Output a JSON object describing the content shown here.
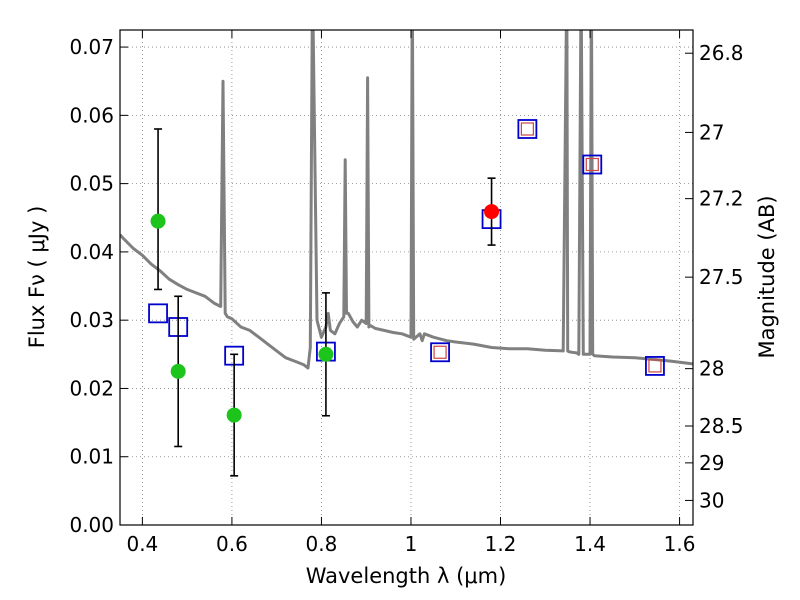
{
  "chart_data": {
    "type": "scatter",
    "xlabel": "Wavelength  λ (μm)",
    "ylabel": "Flux  Fν ( μJy )",
    "y2label": "Magnitude (AB)",
    "xlim": [
      0.35,
      1.63
    ],
    "ylim": [
      0.0,
      0.0725
    ],
    "grid": true,
    "x_ticks": [
      0.4,
      0.6,
      0.8,
      1.0,
      1.2,
      1.4,
      1.6
    ],
    "x_tick_labels": [
      "0.4",
      "0.6",
      "0.8",
      "1",
      "1.2",
      "1.4",
      "1.6"
    ],
    "y_ticks": [
      0.0,
      0.01,
      0.02,
      0.03,
      0.04,
      0.05,
      0.06,
      0.07
    ],
    "y_tick_labels": [
      "0.00",
      "0.01",
      "0.02",
      "0.03",
      "0.04",
      "0.05",
      "0.06",
      "0.07"
    ],
    "mag_ticks": [
      {
        "flux": 0.0691,
        "label": "26.8"
      },
      {
        "flux": 0.0575,
        "label": "27"
      },
      {
        "flux": 0.0478,
        "label": "27.2"
      },
      {
        "flux": 0.0363,
        "label": "27.5"
      },
      {
        "flux": 0.0229,
        "label": "28"
      },
      {
        "flux": 0.0145,
        "label": "28.5"
      },
      {
        "flux": 0.0091,
        "label": "29"
      },
      {
        "flux": 0.0036,
        "label": "30"
      }
    ],
    "colors": {
      "sed": "#808080",
      "observed": "#1cc41c",
      "detected": "#ff0000",
      "model_box": "#0000cc",
      "model_box_inner": "#cc4444",
      "errorbar": "#000000",
      "grid": "#808080"
    },
    "series": [
      {
        "name": "Model SED",
        "kind": "line",
        "x": [
          0.35,
          0.36,
          0.38,
          0.4,
          0.42,
          0.44,
          0.46,
          0.48,
          0.5,
          0.52,
          0.54,
          0.56,
          0.575,
          0.58,
          0.585,
          0.59,
          0.6,
          0.62,
          0.64,
          0.66,
          0.68,
          0.7,
          0.72,
          0.74,
          0.76,
          0.77,
          0.775,
          0.78,
          0.79,
          0.8,
          0.81,
          0.815,
          0.82,
          0.83,
          0.84,
          0.85,
          0.853,
          0.856,
          0.86,
          0.87,
          0.88,
          0.89,
          0.9,
          0.903,
          0.906,
          0.91,
          0.92,
          0.94,
          0.96,
          0.98,
          1.0,
          1.003,
          1.006,
          1.02,
          1.025,
          1.03,
          1.05,
          1.08,
          1.1,
          1.14,
          1.18,
          1.22,
          1.26,
          1.3,
          1.34,
          1.348,
          1.35,
          1.352,
          1.36,
          1.37,
          1.375,
          1.38,
          1.385,
          1.39,
          1.4,
          1.403,
          1.406,
          1.41,
          1.45,
          1.5,
          1.55,
          1.58,
          1.63
        ],
        "y": [
          0.0425,
          0.0418,
          0.0405,
          0.0395,
          0.0382,
          0.0372,
          0.036,
          0.0352,
          0.0345,
          0.034,
          0.0335,
          0.0325,
          0.032,
          0.065,
          0.031,
          0.0305,
          0.0302,
          0.029,
          0.0285,
          0.0275,
          0.0265,
          0.0255,
          0.0245,
          0.024,
          0.0235,
          0.023,
          0.026,
          0.08,
          0.03,
          0.0275,
          0.029,
          0.031,
          0.0285,
          0.028,
          0.0295,
          0.0305,
          0.0535,
          0.031,
          0.031,
          0.0298,
          0.029,
          0.03,
          0.0295,
          0.0655,
          0.029,
          0.0292,
          0.0288,
          0.0285,
          0.0282,
          0.028,
          0.0275,
          0.08,
          0.0272,
          0.028,
          0.027,
          0.028,
          0.0275,
          0.027,
          0.0268,
          0.0265,
          0.026,
          0.0258,
          0.0258,
          0.0256,
          0.0255,
          0.08,
          0.0255,
          0.0254,
          0.0253,
          0.0252,
          0.025,
          0.08,
          0.025,
          0.025,
          0.025,
          0.08,
          0.025,
          0.0248,
          0.0246,
          0.0245,
          0.0242,
          0.024,
          0.0236
        ]
      },
      {
        "name": "Observed photometry",
        "kind": "points",
        "x": [
          0.435,
          0.48,
          0.605,
          0.81
        ],
        "y": [
          0.0445,
          0.0225,
          0.0161,
          0.025
        ],
        "yerr_low": [
          0.0345,
          0.0115,
          0.0072,
          0.016
        ],
        "yerr_high": [
          0.058,
          0.0335,
          0.025,
          0.034
        ]
      },
      {
        "name": "Detection",
        "kind": "points",
        "x": [
          1.18
        ],
        "y": [
          0.0459
        ],
        "yerr_low": [
          0.041
        ],
        "yerr_high": [
          0.0508
        ]
      },
      {
        "name": "Model photometry",
        "kind": "squares",
        "x": [
          0.435,
          0.48,
          0.605,
          0.81,
          1.065,
          1.18,
          1.26,
          1.405,
          1.545
        ],
        "y": [
          0.031,
          0.029,
          0.0248,
          0.0254,
          0.0253,
          0.0448,
          0.058,
          0.0528,
          0.0233
        ],
        "inner": [
          false,
          false,
          false,
          false,
          true,
          false,
          true,
          true,
          true
        ]
      }
    ]
  }
}
